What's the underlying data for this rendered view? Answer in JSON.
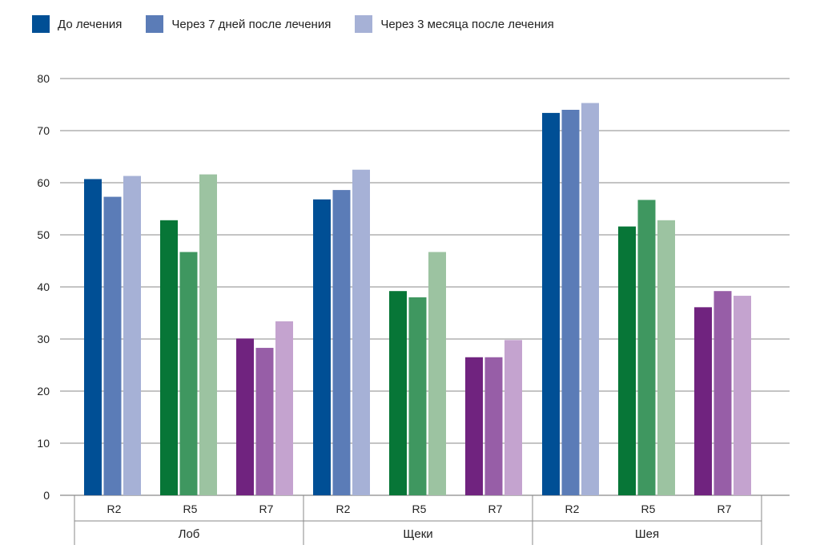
{
  "chart_data": {
    "type": "bar",
    "title": "",
    "xlabel": "",
    "ylabel": "",
    "ylim": [
      0,
      80
    ],
    "yticks": [
      0,
      10,
      20,
      30,
      40,
      50,
      60,
      70,
      80
    ],
    "grid": true,
    "legend": {
      "position": "top-left",
      "entries": [
        {
          "label": "До лечения",
          "color": "#004f95"
        },
        {
          "label": "Через 7 дней после лечения",
          "color": "#5b7cb7"
        },
        {
          "label": "Через 3 месяца после лечения",
          "color": "#a6b1d6"
        }
      ]
    },
    "series_names": [
      "До лечения",
      "Через 7 дней после лечения",
      "Через 3 месяца после лечения"
    ],
    "groups": [
      {
        "name": "Лоб",
        "subgroups": [
          {
            "name": "R2",
            "colors": [
              "#004f95",
              "#5b7cb7",
              "#a6b1d6"
            ],
            "values": [
              60.7,
              57.3,
              61.3
            ]
          },
          {
            "name": "R5",
            "colors": [
              "#077637",
              "#3f9760",
              "#9cc3a1"
            ],
            "values": [
              52.8,
              46.7,
              61.6
            ]
          },
          {
            "name": "R7",
            "colors": [
              "#70237f",
              "#975ea7",
              "#c4a3cf"
            ],
            "values": [
              30.1,
              28.3,
              33.4
            ]
          }
        ]
      },
      {
        "name": "Щеки",
        "subgroups": [
          {
            "name": "R2",
            "colors": [
              "#004f95",
              "#5b7cb7",
              "#a6b1d6"
            ],
            "values": [
              56.8,
              58.6,
              62.5
            ]
          },
          {
            "name": "R5",
            "colors": [
              "#077637",
              "#3f9760",
              "#9cc3a1"
            ],
            "values": [
              39.2,
              38.0,
              46.7
            ]
          },
          {
            "name": "R7",
            "colors": [
              "#70237f",
              "#975ea7",
              "#c4a3cf"
            ],
            "values": [
              26.5,
              26.5,
              29.8
            ]
          }
        ]
      },
      {
        "name": "Шея",
        "subgroups": [
          {
            "name": "R2",
            "colors": [
              "#004f95",
              "#5b7cb7",
              "#a6b1d6"
            ],
            "values": [
              73.4,
              74.0,
              75.3
            ]
          },
          {
            "name": "R5",
            "colors": [
              "#077637",
              "#3f9760",
              "#9cc3a1"
            ],
            "values": [
              51.6,
              56.7,
              52.8
            ]
          },
          {
            "name": "R7",
            "colors": [
              "#70237f",
              "#975ea7",
              "#c4a3cf"
            ],
            "values": [
              36.1,
              39.2,
              38.3
            ]
          }
        ]
      }
    ]
  }
}
